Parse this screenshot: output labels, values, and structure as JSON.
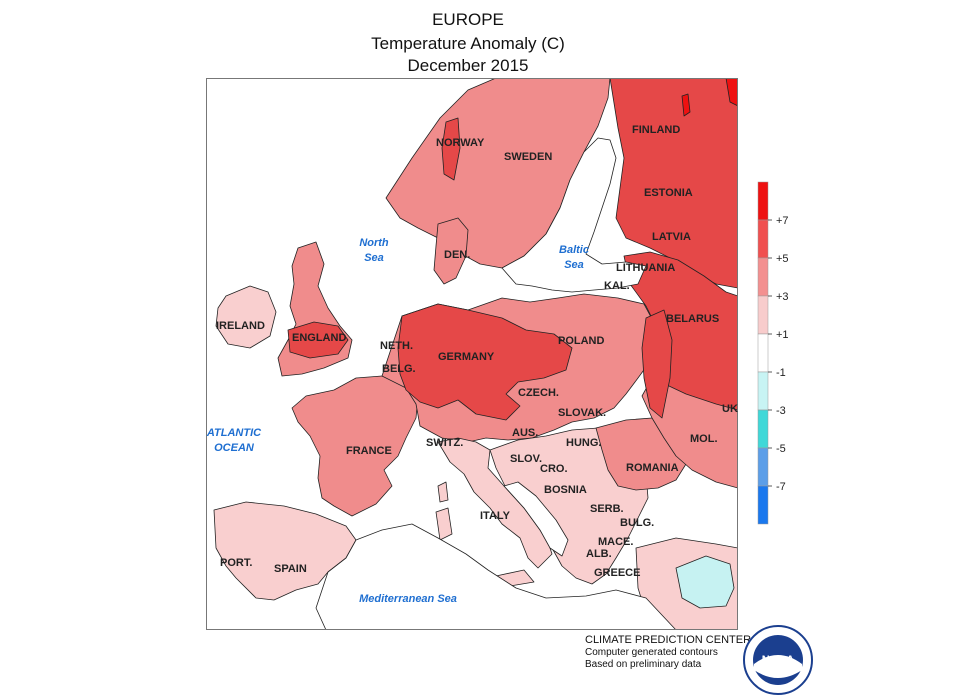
{
  "header": {
    "region": "EUROPE",
    "metric": "Temperature Anomaly (C)",
    "period": "December 2015"
  },
  "legend": {
    "ticks": [
      "+7",
      "+5",
      "+3",
      "+1",
      "-1",
      "-3",
      "-5",
      "-7"
    ],
    "colors": [
      "#ee1111",
      "#f05050",
      "#f39090",
      "#f8cccc",
      "#ffffff",
      "#c8f4f4",
      "#40d8d8",
      "#5c9ee8",
      "#1a78ee"
    ]
  },
  "palette": {
    "land_very_warm": "#e54848",
    "land_warm": "#f08c8c",
    "land_mild": "#f9cfcf",
    "land_neutral": "#ffffff",
    "land_cool": "#c6f2f2",
    "sea": "#ffffff",
    "label_water": "#1f6fd1"
  },
  "countries": [
    {
      "id": "ireland",
      "label": "IRELAND"
    },
    {
      "id": "england",
      "label": "ENGLAND"
    },
    {
      "id": "norway",
      "label": "NORWAY"
    },
    {
      "id": "sweden",
      "label": "SWEDEN"
    },
    {
      "id": "finland",
      "label": "FINLAND"
    },
    {
      "id": "estonia",
      "label": "ESTONIA"
    },
    {
      "id": "latvia",
      "label": "LATVIA"
    },
    {
      "id": "lithuania",
      "label": "LITHUANIA"
    },
    {
      "id": "kal",
      "label": "KAL."
    },
    {
      "id": "belarus",
      "label": "BELARUS"
    },
    {
      "id": "den",
      "label": "DEN."
    },
    {
      "id": "neth",
      "label": "NETH."
    },
    {
      "id": "belg",
      "label": "BELG."
    },
    {
      "id": "germany",
      "label": "GERMANY"
    },
    {
      "id": "poland",
      "label": "POLAND"
    },
    {
      "id": "czech",
      "label": "CZECH."
    },
    {
      "id": "slovak",
      "label": "SLOVAK."
    },
    {
      "id": "france",
      "label": "FRANCE"
    },
    {
      "id": "switz",
      "label": "SWITZ."
    },
    {
      "id": "aus",
      "label": "AUS."
    },
    {
      "id": "hung",
      "label": "HUNG."
    },
    {
      "id": "slov",
      "label": "SLOV."
    },
    {
      "id": "cro",
      "label": "CRO."
    },
    {
      "id": "bosnia",
      "label": "BOSNIA"
    },
    {
      "id": "romania",
      "label": "ROMANIA"
    },
    {
      "id": "mol",
      "label": "MOL."
    },
    {
      "id": "uk_edge",
      "label": "UK"
    },
    {
      "id": "serb",
      "label": "SERB."
    },
    {
      "id": "bulg",
      "label": "BULG."
    },
    {
      "id": "mace",
      "label": "MACE."
    },
    {
      "id": "alb",
      "label": "ALB."
    },
    {
      "id": "greece",
      "label": "GREECE"
    },
    {
      "id": "italy",
      "label": "ITALY"
    },
    {
      "id": "port",
      "label": "PORT."
    },
    {
      "id": "spain",
      "label": "SPAIN"
    }
  ],
  "water_bodies": [
    {
      "id": "north_sea",
      "lines": [
        "North",
        "Sea"
      ]
    },
    {
      "id": "baltic_sea",
      "lines": [
        "Baltic",
        "Sea"
      ]
    },
    {
      "id": "atlantic",
      "lines": [
        "ATLANTIC",
        "OCEAN"
      ]
    },
    {
      "id": "med",
      "lines": [
        "Mediterranean Sea"
      ]
    }
  ],
  "credits": {
    "source": "CLIMATE PREDICTION CENTER, NOAA",
    "note1": "Computer generated contours",
    "note2": "Based on preliminary data"
  },
  "logo": {
    "text": "NOAA",
    "ring_text": "NATIONAL OCEANIC AND ATMOSPHERIC ADMINISTRATION · U.S. DEPARTMENT OF COMMERCE"
  }
}
